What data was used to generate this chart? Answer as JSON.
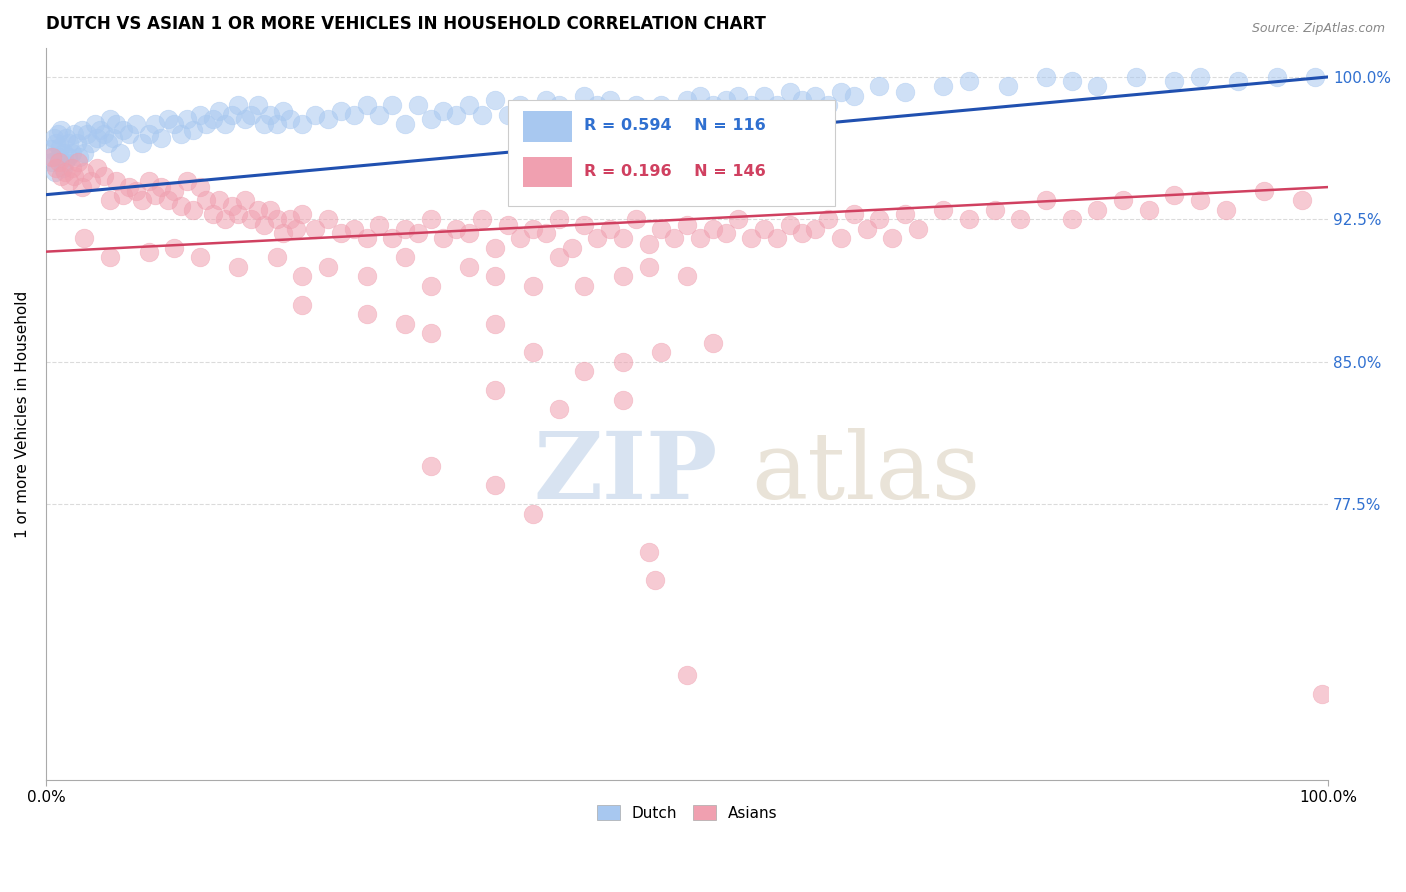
{
  "title": "DUTCH VS ASIAN 1 OR MORE VEHICLES IN HOUSEHOLD CORRELATION CHART",
  "source": "Source: ZipAtlas.com",
  "ylabel": "1 or more Vehicles in Household",
  "xlim": [
    0.0,
    100.0
  ],
  "ylim": [
    63.0,
    101.5
  ],
  "yticks": [
    77.5,
    85.0,
    92.5,
    100.0
  ],
  "legend_dutch_R": "0.594",
  "legend_dutch_N": "116",
  "legend_asian_R": "0.196",
  "legend_asian_N": "146",
  "dutch_color": "#A8C8F0",
  "asian_color": "#F0A0B0",
  "dutch_line_color": "#2050B0",
  "asian_line_color": "#D04060",
  "label_color": "#3070D0",
  "background_color": "#FFFFFF",
  "dutch_line_start_y": 93.8,
  "dutch_line_end_y": 100.0,
  "asian_line_start_y": 90.8,
  "asian_line_end_y": 94.2,
  "dutch_points": [
    [
      0.3,
      95.8
    ],
    [
      0.4,
      96.2
    ],
    [
      0.5,
      95.5
    ],
    [
      0.6,
      96.8
    ],
    [
      0.7,
      95.0
    ],
    [
      0.8,
      96.5
    ],
    [
      0.9,
      97.0
    ],
    [
      1.0,
      95.8
    ],
    [
      1.1,
      96.3
    ],
    [
      1.2,
      97.2
    ],
    [
      1.3,
      95.2
    ],
    [
      1.4,
      96.0
    ],
    [
      1.5,
      95.5
    ],
    [
      1.6,
      96.8
    ],
    [
      1.7,
      95.8
    ],
    [
      1.8,
      96.5
    ],
    [
      2.0,
      96.0
    ],
    [
      2.2,
      97.0
    ],
    [
      2.4,
      96.5
    ],
    [
      2.6,
      95.8
    ],
    [
      2.8,
      97.2
    ],
    [
      3.0,
      96.0
    ],
    [
      3.2,
      97.0
    ],
    [
      3.5,
      96.5
    ],
    [
      3.8,
      97.5
    ],
    [
      4.0,
      96.8
    ],
    [
      4.2,
      97.2
    ],
    [
      4.5,
      97.0
    ],
    [
      4.8,
      96.5
    ],
    [
      5.0,
      97.8
    ],
    [
      5.2,
      96.8
    ],
    [
      5.5,
      97.5
    ],
    [
      5.8,
      96.0
    ],
    [
      6.0,
      97.2
    ],
    [
      6.5,
      97.0
    ],
    [
      7.0,
      97.5
    ],
    [
      7.5,
      96.5
    ],
    [
      8.0,
      97.0
    ],
    [
      8.5,
      97.5
    ],
    [
      9.0,
      96.8
    ],
    [
      9.5,
      97.8
    ],
    [
      10.0,
      97.5
    ],
    [
      10.5,
      97.0
    ],
    [
      11.0,
      97.8
    ],
    [
      11.5,
      97.2
    ],
    [
      12.0,
      98.0
    ],
    [
      12.5,
      97.5
    ],
    [
      13.0,
      97.8
    ],
    [
      13.5,
      98.2
    ],
    [
      14.0,
      97.5
    ],
    [
      14.5,
      98.0
    ],
    [
      15.0,
      98.5
    ],
    [
      15.5,
      97.8
    ],
    [
      16.0,
      98.0
    ],
    [
      16.5,
      98.5
    ],
    [
      17.0,
      97.5
    ],
    [
      17.5,
      98.0
    ],
    [
      18.0,
      97.5
    ],
    [
      18.5,
      98.2
    ],
    [
      19.0,
      97.8
    ],
    [
      20.0,
      97.5
    ],
    [
      21.0,
      98.0
    ],
    [
      22.0,
      97.8
    ],
    [
      23.0,
      98.2
    ],
    [
      24.0,
      98.0
    ],
    [
      25.0,
      98.5
    ],
    [
      26.0,
      98.0
    ],
    [
      27.0,
      98.5
    ],
    [
      28.0,
      97.5
    ],
    [
      29.0,
      98.5
    ],
    [
      30.0,
      97.8
    ],
    [
      31.0,
      98.2
    ],
    [
      32.0,
      98.0
    ],
    [
      33.0,
      98.5
    ],
    [
      34.0,
      98.0
    ],
    [
      35.0,
      98.8
    ],
    [
      36.0,
      98.0
    ],
    [
      37.0,
      98.5
    ],
    [
      38.0,
      98.0
    ],
    [
      39.0,
      98.8
    ],
    [
      40.0,
      98.5
    ],
    [
      41.0,
      97.8
    ],
    [
      42.0,
      99.0
    ],
    [
      43.0,
      98.5
    ],
    [
      44.0,
      98.8
    ],
    [
      45.0,
      98.0
    ],
    [
      46.0,
      98.5
    ],
    [
      47.0,
      98.0
    ],
    [
      48.0,
      98.5
    ],
    [
      49.0,
      98.2
    ],
    [
      50.0,
      98.8
    ],
    [
      51.0,
      99.0
    ],
    [
      52.0,
      98.5
    ],
    [
      53.0,
      98.8
    ],
    [
      54.0,
      99.0
    ],
    [
      55.0,
      98.5
    ],
    [
      56.0,
      99.0
    ],
    [
      57.0,
      98.5
    ],
    [
      58.0,
      99.2
    ],
    [
      59.0,
      98.8
    ],
    [
      60.0,
      99.0
    ],
    [
      61.0,
      98.5
    ],
    [
      62.0,
      99.2
    ],
    [
      63.0,
      99.0
    ],
    [
      65.0,
      99.5
    ],
    [
      67.0,
      99.2
    ],
    [
      70.0,
      99.5
    ],
    [
      72.0,
      99.8
    ],
    [
      75.0,
      99.5
    ],
    [
      78.0,
      100.0
    ],
    [
      80.0,
      99.8
    ],
    [
      82.0,
      99.5
    ],
    [
      85.0,
      100.0
    ],
    [
      88.0,
      99.8
    ],
    [
      90.0,
      100.0
    ],
    [
      93.0,
      99.8
    ],
    [
      96.0,
      100.0
    ],
    [
      99.0,
      100.0
    ]
  ],
  "asian_points": [
    [
      0.5,
      95.8
    ],
    [
      0.8,
      95.2
    ],
    [
      1.0,
      95.5
    ],
    [
      1.2,
      94.8
    ],
    [
      1.5,
      95.0
    ],
    [
      1.8,
      94.5
    ],
    [
      2.0,
      95.2
    ],
    [
      2.2,
      94.8
    ],
    [
      2.5,
      95.5
    ],
    [
      2.8,
      94.2
    ],
    [
      3.0,
      95.0
    ],
    [
      3.5,
      94.5
    ],
    [
      4.0,
      95.2
    ],
    [
      4.5,
      94.8
    ],
    [
      5.0,
      93.5
    ],
    [
      5.5,
      94.5
    ],
    [
      6.0,
      93.8
    ],
    [
      6.5,
      94.2
    ],
    [
      7.0,
      94.0
    ],
    [
      7.5,
      93.5
    ],
    [
      8.0,
      94.5
    ],
    [
      8.5,
      93.8
    ],
    [
      9.0,
      94.2
    ],
    [
      9.5,
      93.5
    ],
    [
      10.0,
      94.0
    ],
    [
      10.5,
      93.2
    ],
    [
      11.0,
      94.5
    ],
    [
      11.5,
      93.0
    ],
    [
      12.0,
      94.2
    ],
    [
      12.5,
      93.5
    ],
    [
      13.0,
      92.8
    ],
    [
      13.5,
      93.5
    ],
    [
      14.0,
      92.5
    ],
    [
      14.5,
      93.2
    ],
    [
      15.0,
      92.8
    ],
    [
      15.5,
      93.5
    ],
    [
      16.0,
      92.5
    ],
    [
      16.5,
      93.0
    ],
    [
      17.0,
      92.2
    ],
    [
      17.5,
      93.0
    ],
    [
      18.0,
      92.5
    ],
    [
      18.5,
      91.8
    ],
    [
      19.0,
      92.5
    ],
    [
      19.5,
      92.0
    ],
    [
      20.0,
      92.8
    ],
    [
      21.0,
      92.0
    ],
    [
      22.0,
      92.5
    ],
    [
      23.0,
      91.8
    ],
    [
      24.0,
      92.0
    ],
    [
      25.0,
      91.5
    ],
    [
      26.0,
      92.2
    ],
    [
      27.0,
      91.5
    ],
    [
      28.0,
      92.0
    ],
    [
      29.0,
      91.8
    ],
    [
      30.0,
      92.5
    ],
    [
      31.0,
      91.5
    ],
    [
      32.0,
      92.0
    ],
    [
      33.0,
      91.8
    ],
    [
      34.0,
      92.5
    ],
    [
      35.0,
      91.0
    ],
    [
      36.0,
      92.2
    ],
    [
      37.0,
      91.5
    ],
    [
      38.0,
      92.0
    ],
    [
      39.0,
      91.8
    ],
    [
      40.0,
      92.5
    ],
    [
      41.0,
      91.0
    ],
    [
      42.0,
      92.2
    ],
    [
      43.0,
      91.5
    ],
    [
      44.0,
      92.0
    ],
    [
      45.0,
      91.5
    ],
    [
      46.0,
      92.5
    ],
    [
      47.0,
      91.2
    ],
    [
      48.0,
      92.0
    ],
    [
      49.0,
      91.5
    ],
    [
      50.0,
      92.2
    ],
    [
      51.0,
      91.5
    ],
    [
      52.0,
      92.0
    ],
    [
      53.0,
      91.8
    ],
    [
      54.0,
      92.5
    ],
    [
      55.0,
      91.5
    ],
    [
      56.0,
      92.0
    ],
    [
      57.0,
      91.5
    ],
    [
      58.0,
      92.2
    ],
    [
      59.0,
      91.8
    ],
    [
      60.0,
      92.0
    ],
    [
      61.0,
      92.5
    ],
    [
      62.0,
      91.5
    ],
    [
      63.0,
      92.8
    ],
    [
      64.0,
      92.0
    ],
    [
      65.0,
      92.5
    ],
    [
      66.0,
      91.5
    ],
    [
      67.0,
      92.8
    ],
    [
      68.0,
      92.0
    ],
    [
      70.0,
      93.0
    ],
    [
      72.0,
      92.5
    ],
    [
      74.0,
      93.0
    ],
    [
      76.0,
      92.5
    ],
    [
      78.0,
      93.5
    ],
    [
      80.0,
      92.5
    ],
    [
      82.0,
      93.0
    ],
    [
      84.0,
      93.5
    ],
    [
      86.0,
      93.0
    ],
    [
      88.0,
      93.8
    ],
    [
      90.0,
      93.5
    ],
    [
      92.0,
      93.0
    ],
    [
      95.0,
      94.0
    ],
    [
      98.0,
      93.5
    ],
    [
      3.0,
      91.5
    ],
    [
      5.0,
      90.5
    ],
    [
      8.0,
      90.8
    ],
    [
      10.0,
      91.0
    ],
    [
      12.0,
      90.5
    ],
    [
      15.0,
      90.0
    ],
    [
      18.0,
      90.5
    ],
    [
      20.0,
      89.5
    ],
    [
      22.0,
      90.0
    ],
    [
      25.0,
      89.5
    ],
    [
      28.0,
      90.5
    ],
    [
      30.0,
      89.0
    ],
    [
      33.0,
      90.0
    ],
    [
      35.0,
      89.5
    ],
    [
      38.0,
      89.0
    ],
    [
      40.0,
      90.5
    ],
    [
      42.0,
      89.0
    ],
    [
      45.0,
      89.5
    ],
    [
      47.0,
      90.0
    ],
    [
      50.0,
      89.5
    ],
    [
      20.0,
      88.0
    ],
    [
      25.0,
      87.5
    ],
    [
      28.0,
      87.0
    ],
    [
      30.0,
      86.5
    ],
    [
      35.0,
      87.0
    ],
    [
      38.0,
      85.5
    ],
    [
      42.0,
      84.5
    ],
    [
      45.0,
      85.0
    ],
    [
      48.0,
      85.5
    ],
    [
      52.0,
      86.0
    ],
    [
      35.0,
      83.5
    ],
    [
      40.0,
      82.5
    ],
    [
      45.0,
      83.0
    ],
    [
      30.0,
      79.5
    ],
    [
      35.0,
      78.5
    ],
    [
      38.0,
      77.0
    ],
    [
      47.0,
      75.0
    ],
    [
      47.5,
      73.5
    ],
    [
      50.0,
      68.5
    ],
    [
      99.5,
      67.5
    ]
  ]
}
